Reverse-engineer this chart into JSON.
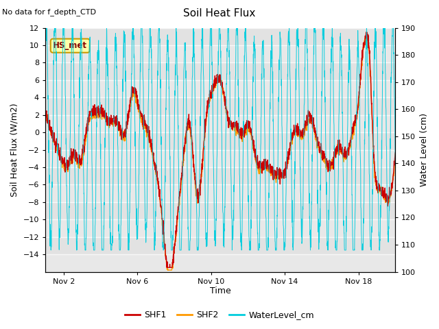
{
  "title": "Soil Heat Flux",
  "top_left_text": "No data for f_depth_CTD",
  "box_label": "HS_met",
  "xlabel": "Time",
  "ylabel_left": "Soil Heat Flux (W/m2)",
  "ylabel_right": "Water Level (cm)",
  "ylim_left": [
    -16,
    12
  ],
  "ylim_right": [
    100,
    190
  ],
  "yticks_left": [
    -14,
    -12,
    -10,
    -8,
    -6,
    -4,
    -2,
    0,
    2,
    4,
    6,
    8,
    10,
    12
  ],
  "yticks_right": [
    100,
    110,
    120,
    130,
    140,
    150,
    160,
    170,
    180,
    190
  ],
  "xtick_labels": [
    "Nov 2",
    "Nov 6",
    "Nov 10",
    "Nov 14",
    "Nov 18"
  ],
  "xtick_positions": [
    1,
    5,
    9,
    13,
    17
  ],
  "color_shf1": "#cc0000",
  "color_shf2": "#ff9900",
  "color_water": "#00ccdd",
  "plot_bg": "#e8e8e8",
  "legend_labels": [
    "SHF1",
    "SHF2",
    "WaterLevel_cm"
  ],
  "grid_color": "#f8f8f8",
  "xlim": [
    0,
    19
  ],
  "box_facecolor": "#ffffaa",
  "box_edgecolor": "#cc9900",
  "box_textcolor": "#880000"
}
